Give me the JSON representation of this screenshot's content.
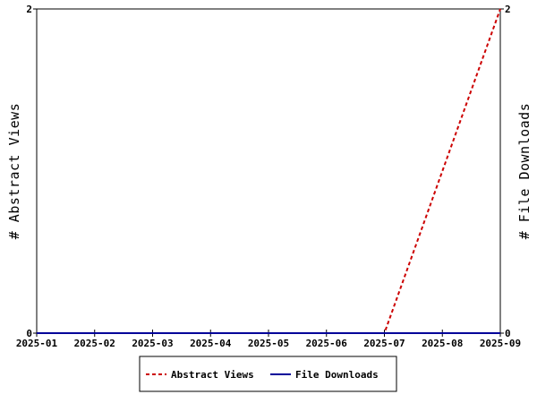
{
  "chart_data": {
    "type": "line",
    "categories": [
      "2025-01",
      "2025-02",
      "2025-03",
      "2025-04",
      "2025-05",
      "2025-06",
      "2025-07",
      "2025-08",
      "2025-09"
    ],
    "y_left": {
      "label": "# Abstract Views",
      "ticks": [
        "0",
        "2"
      ],
      "range": [
        0,
        2
      ]
    },
    "y_right": {
      "label": "# File Downloads",
      "ticks": [
        "0",
        "2"
      ],
      "range": [
        0,
        2
      ]
    },
    "series": [
      {
        "name": "Abstract Views",
        "axis": "left",
        "values": [
          0,
          0,
          0,
          0,
          0,
          0,
          0,
          1,
          2
        ],
        "color": "#cc0000",
        "style": "dashed"
      },
      {
        "name": "File Downloads",
        "axis": "right",
        "values": [
          0,
          0,
          0,
          0,
          0,
          0,
          0,
          0,
          0
        ],
        "color": "#000099",
        "style": "solid"
      }
    ],
    "grid": false,
    "legend_position": "bottom-center"
  }
}
